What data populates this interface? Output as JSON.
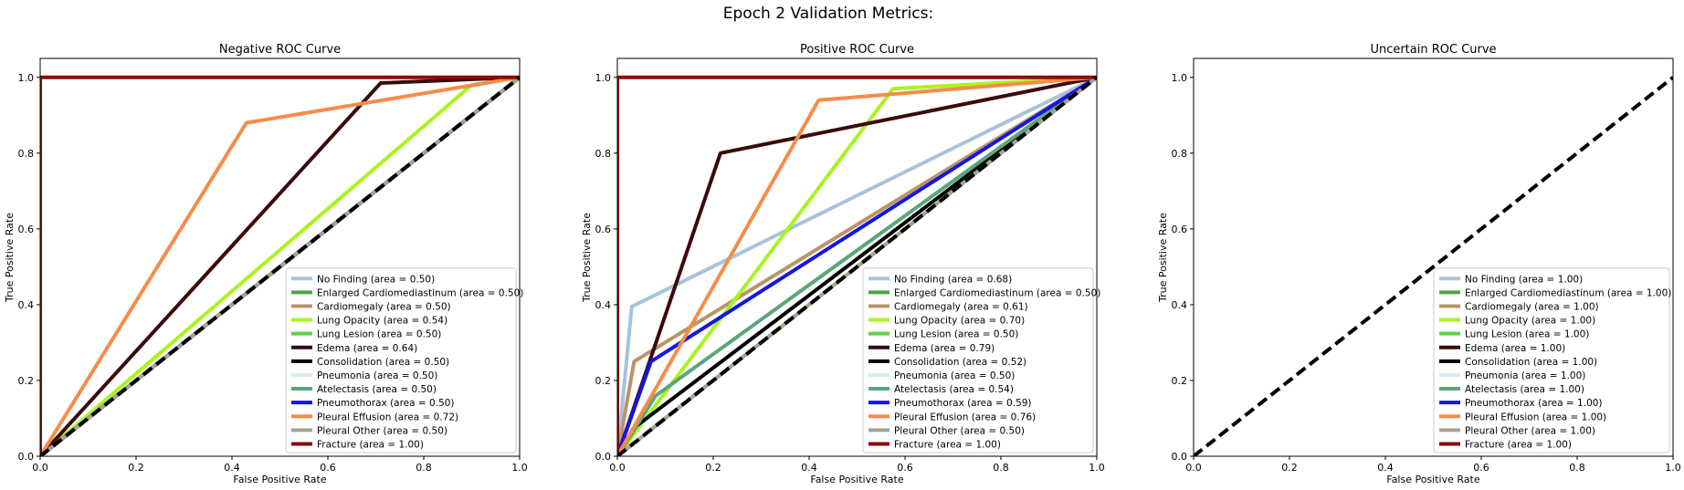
{
  "figure": {
    "suptitle": "Epoch 2 Validation Metrics:"
  },
  "chart_data": [
    {
      "type": "line",
      "title": "Negative ROC Curve",
      "xlabel": "False Positive Rate",
      "ylabel": "True Positive Rate",
      "xlim": [
        0,
        1
      ],
      "ylim": [
        0,
        1.05
      ],
      "xticks": [
        "0.0",
        "0.2",
        "0.4",
        "0.6",
        "0.8",
        "1.0"
      ],
      "yticks": [
        "0.0",
        "0.2",
        "0.4",
        "0.6",
        "0.8",
        "1.0"
      ],
      "grid": false,
      "legend_position": "lower right",
      "diagonal": {
        "color": "#000000",
        "style": "dashed",
        "x": [
          0,
          1
        ],
        "y": [
          0,
          1
        ]
      },
      "series": [
        {
          "name": "No Finding (area = 0.50)",
          "color": "#a9c2dc",
          "x": [
            0,
            1,
            1
          ],
          "y": [
            0,
            1,
            1
          ]
        },
        {
          "name": "Enlarged Cardiomediastinum (area = 0.50)",
          "color": "#4aa54a",
          "x": [
            0,
            1,
            1
          ],
          "y": [
            0,
            1,
            1
          ]
        },
        {
          "name": "Cardiomegaly (area = 0.50)",
          "color": "#b9946a",
          "x": [
            0,
            1,
            1
          ],
          "y": [
            0,
            1,
            1
          ]
        },
        {
          "name": "Lung Opacity (area = 0.54)",
          "color": "#a8f41d",
          "x": [
            0,
            0.9,
            1
          ],
          "y": [
            0,
            0.98,
            1
          ]
        },
        {
          "name": "Lung Lesion (area = 0.50)",
          "color": "#62d04a",
          "x": [
            0,
            1,
            1
          ],
          "y": [
            0,
            1,
            1
          ]
        },
        {
          "name": "Edema (area = 0.64)",
          "color": "#3c0a0a",
          "x": [
            0,
            0.71,
            1
          ],
          "y": [
            0,
            0.985,
            1
          ]
        },
        {
          "name": "Consolidation (area = 0.50)",
          "color": "#000000",
          "x": [
            0,
            1,
            1
          ],
          "y": [
            0,
            1,
            1
          ]
        },
        {
          "name": "Pneumonia (area = 0.50)",
          "color": "#d4ecf4",
          "x": [
            0,
            1,
            1
          ],
          "y": [
            0,
            1,
            1
          ]
        },
        {
          "name": "Atelectasis (area = 0.50)",
          "color": "#5aa67a",
          "x": [
            0,
            1,
            1
          ],
          "y": [
            0,
            1,
            1
          ]
        },
        {
          "name": "Pneumothorax (area = 0.50)",
          "color": "#1515e6",
          "x": [
            0,
            1,
            1
          ],
          "y": [
            0,
            1,
            1
          ]
        },
        {
          "name": "Pleural Effusion (area = 0.72)",
          "color": "#f58c4a",
          "x": [
            0,
            0.43,
            1
          ],
          "y": [
            0,
            0.88,
            1
          ]
        },
        {
          "name": "Pleural Other (area = 0.50)",
          "color": "#a8a391",
          "x": [
            0,
            1,
            1
          ],
          "y": [
            0,
            1,
            1
          ]
        },
        {
          "name": "Fracture (area = 1.00)",
          "color": "#8b0a0a",
          "x": [
            0,
            0,
            1
          ],
          "y": [
            0,
            1,
            1
          ]
        }
      ]
    },
    {
      "type": "line",
      "title": "Positive ROC Curve",
      "xlabel": "False Positive Rate",
      "ylabel": "True Positive Rate",
      "xlim": [
        0,
        1
      ],
      "ylim": [
        0,
        1.05
      ],
      "xticks": [
        "0.0",
        "0.2",
        "0.4",
        "0.6",
        "0.8",
        "1.0"
      ],
      "yticks": [
        "0.0",
        "0.2",
        "0.4",
        "0.6",
        "0.8",
        "1.0"
      ],
      "grid": false,
      "legend_position": "lower right",
      "diagonal": {
        "color": "#000000",
        "style": "dashed",
        "x": [
          0,
          1
        ],
        "y": [
          0,
          1
        ]
      },
      "series": [
        {
          "name": "No Finding (area = 0.68)",
          "color": "#a9c2dc",
          "x": [
            0,
            0.03,
            1
          ],
          "y": [
            0,
            0.395,
            1
          ]
        },
        {
          "name": "Enlarged Cardiomediastinum (area = 0.50)",
          "color": "#4aa54a",
          "x": [
            0,
            1,
            1
          ],
          "y": [
            0,
            1,
            1
          ]
        },
        {
          "name": "Cardiomegaly (area = 0.61)",
          "color": "#b9946a",
          "x": [
            0,
            0.035,
            1
          ],
          "y": [
            0,
            0.25,
            1
          ]
        },
        {
          "name": "Lung Opacity (area = 0.70)",
          "color": "#a8f41d",
          "x": [
            0,
            0.575,
            1
          ],
          "y": [
            0,
            0.97,
            1
          ]
        },
        {
          "name": "Lung Lesion (area = 0.50)",
          "color": "#62d04a",
          "x": [
            0,
            1,
            1
          ],
          "y": [
            0,
            1,
            1
          ]
        },
        {
          "name": "Edema (area = 0.79)",
          "color": "#3c0a0a",
          "x": [
            0,
            0.215,
            1
          ],
          "y": [
            0,
            0.8,
            1
          ]
        },
        {
          "name": "Consolidation (area = 0.52)",
          "color": "#000000",
          "x": [
            0,
            0.04,
            1
          ],
          "y": [
            0,
            0.08,
            1
          ]
        },
        {
          "name": "Pneumonia (area = 0.50)",
          "color": "#d4ecf4",
          "x": [
            0,
            1,
            1
          ],
          "y": [
            0,
            1,
            1
          ]
        },
        {
          "name": "Atelectasis (area = 0.54)",
          "color": "#5aa67a",
          "x": [
            0,
            0.08,
            1
          ],
          "y": [
            0,
            0.16,
            1
          ]
        },
        {
          "name": "Pneumothorax (area = 0.59)",
          "color": "#1515e6",
          "x": [
            0,
            0.07,
            1
          ],
          "y": [
            0,
            0.25,
            1
          ]
        },
        {
          "name": "Pleural Effusion (area = 0.76)",
          "color": "#f58c4a",
          "x": [
            0,
            0.42,
            1
          ],
          "y": [
            0,
            0.94,
            1
          ]
        },
        {
          "name": "Pleural Other (area = 0.50)",
          "color": "#a8a391",
          "x": [
            0,
            1,
            1
          ],
          "y": [
            0,
            1,
            1
          ]
        },
        {
          "name": "Fracture (area = 1.00)",
          "color": "#8b0a0a",
          "x": [
            0,
            0,
            1
          ],
          "y": [
            0,
            1,
            1
          ]
        }
      ]
    },
    {
      "type": "line",
      "title": "Uncertain ROC Curve",
      "xlabel": "False Positive Rate",
      "ylabel": "True Positive Rate",
      "xlim": [
        0,
        1
      ],
      "ylim": [
        0,
        1.05
      ],
      "xticks": [
        "0.0",
        "0.2",
        "0.4",
        "0.6",
        "0.8",
        "1.0"
      ],
      "yticks": [
        "0.0",
        "0.2",
        "0.4",
        "0.6",
        "0.8",
        "1.0"
      ],
      "grid": false,
      "legend_position": "lower right",
      "diagonal": {
        "color": "#000000",
        "style": "dashed",
        "x": [
          0,
          1
        ],
        "y": [
          0,
          1
        ]
      },
      "series": [
        {
          "name": "No Finding (area = 1.00)",
          "color": "#a9c2dc",
          "x": [],
          "y": []
        },
        {
          "name": "Enlarged Cardiomediastinum (area = 1.00)",
          "color": "#4aa54a",
          "x": [],
          "y": []
        },
        {
          "name": "Cardiomegaly (area = 1.00)",
          "color": "#b9946a",
          "x": [],
          "y": []
        },
        {
          "name": "Lung Opacity (area = 1.00)",
          "color": "#a8f41d",
          "x": [],
          "y": []
        },
        {
          "name": "Lung Lesion (area = 1.00)",
          "color": "#62d04a",
          "x": [],
          "y": []
        },
        {
          "name": "Edema (area = 1.00)",
          "color": "#3c0a0a",
          "x": [],
          "y": []
        },
        {
          "name": "Consolidation (area = 1.00)",
          "color": "#000000",
          "x": [],
          "y": []
        },
        {
          "name": "Pneumonia (area = 1.00)",
          "color": "#d4ecf4",
          "x": [],
          "y": []
        },
        {
          "name": "Atelectasis (area = 1.00)",
          "color": "#5aa67a",
          "x": [],
          "y": []
        },
        {
          "name": "Pneumothorax (area = 1.00)",
          "color": "#1515e6",
          "x": [],
          "y": []
        },
        {
          "name": "Pleural Effusion (area = 1.00)",
          "color": "#f58c4a",
          "x": [],
          "y": []
        },
        {
          "name": "Pleural Other (area = 1.00)",
          "color": "#a8a391",
          "x": [],
          "y": []
        },
        {
          "name": "Fracture (area = 1.00)",
          "color": "#8b0a0a",
          "x": [],
          "y": []
        }
      ]
    }
  ]
}
